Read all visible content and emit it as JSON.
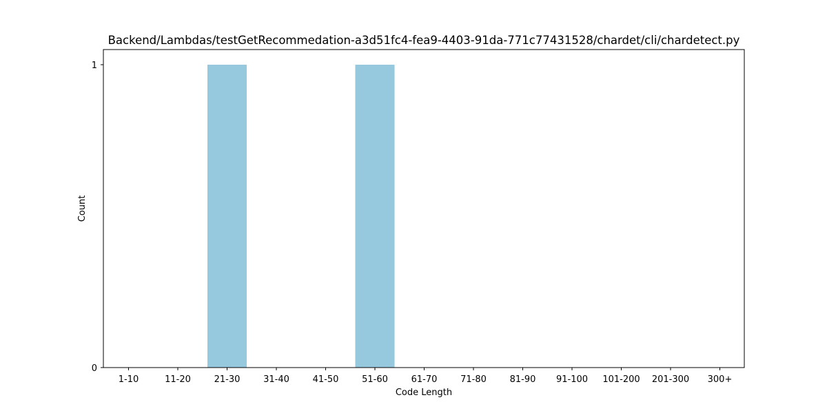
{
  "chart_data": {
    "type": "bar",
    "title": "Backend/Lambdas/testGetRecommedation-a3d51fc4-fea9-4403-91da-771c77431528/chardet/cli/chardetect.py",
    "xlabel": "Code Length",
    "ylabel": "Count",
    "categories": [
      "1-10",
      "11-20",
      "21-30",
      "31-40",
      "41-50",
      "51-60",
      "61-70",
      "71-80",
      "81-90",
      "91-100",
      "101-200",
      "201-300",
      "300+"
    ],
    "values": [
      0,
      0,
      1,
      0,
      0,
      1,
      0,
      0,
      0,
      0,
      0,
      0,
      0
    ],
    "yticks": [
      0,
      1
    ],
    "ylim": [
      0,
      1.05
    ],
    "grid": false,
    "colors": {
      "bar": "#96c9de",
      "axis": "#000000"
    }
  }
}
